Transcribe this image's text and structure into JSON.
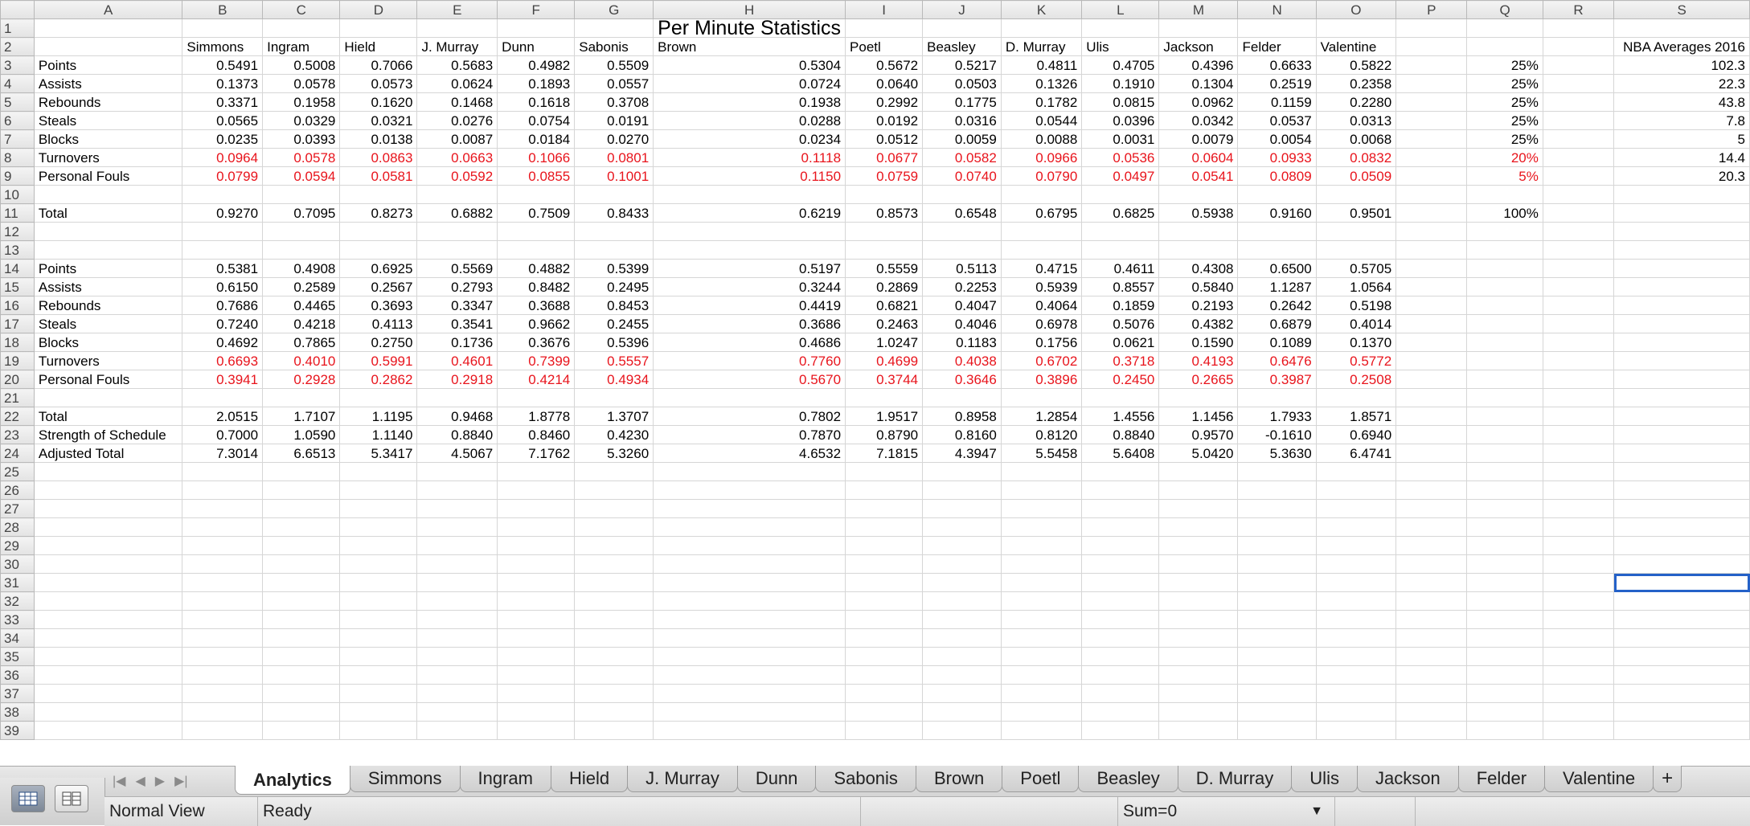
{
  "columns": [
    "A",
    "B",
    "C",
    "D",
    "E",
    "F",
    "G",
    "H",
    "I",
    "J",
    "K",
    "L",
    "M",
    "N",
    "O",
    "P",
    "Q",
    "R",
    "S"
  ],
  "title": "Per Minute Statistics",
  "players": [
    "Simmons",
    "Ingram",
    "Hield",
    "J. Murray",
    "Dunn",
    "Sabonis",
    "Brown",
    "Poetl",
    "Beasley",
    "D. Murray",
    "Ulis",
    "Jackson",
    "Felder",
    "Valentine"
  ],
  "nba_header": "NBA Averages 2016",
  "section1": [
    {
      "label": "Points",
      "red": false,
      "values": [
        "0.5491",
        "0.5008",
        "0.7066",
        "0.5683",
        "0.4982",
        "0.5509",
        "0.5304",
        "0.5672",
        "0.5217",
        "0.4811",
        "0.4705",
        "0.4396",
        "0.6633",
        "0.5822"
      ],
      "weight": "25%",
      "nba": "102.3"
    },
    {
      "label": "Assists",
      "red": false,
      "values": [
        "0.1373",
        "0.0578",
        "0.0573",
        "0.0624",
        "0.1893",
        "0.0557",
        "0.0724",
        "0.0640",
        "0.0503",
        "0.1326",
        "0.1910",
        "0.1304",
        "0.2519",
        "0.2358"
      ],
      "weight": "25%",
      "nba": "22.3"
    },
    {
      "label": "Rebounds",
      "red": false,
      "values": [
        "0.3371",
        "0.1958",
        "0.1620",
        "0.1468",
        "0.1618",
        "0.3708",
        "0.1938",
        "0.2992",
        "0.1775",
        "0.1782",
        "0.0815",
        "0.0962",
        "0.1159",
        "0.2280"
      ],
      "weight": "25%",
      "nba": "43.8"
    },
    {
      "label": "Steals",
      "red": false,
      "values": [
        "0.0565",
        "0.0329",
        "0.0321",
        "0.0276",
        "0.0754",
        "0.0191",
        "0.0288",
        "0.0192",
        "0.0316",
        "0.0544",
        "0.0396",
        "0.0342",
        "0.0537",
        "0.0313"
      ],
      "weight": "25%",
      "nba": "7.8"
    },
    {
      "label": "Blocks",
      "red": false,
      "values": [
        "0.0235",
        "0.0393",
        "0.0138",
        "0.0087",
        "0.0184",
        "0.0270",
        "0.0234",
        "0.0512",
        "0.0059",
        "0.0088",
        "0.0031",
        "0.0079",
        "0.0054",
        "0.0068"
      ],
      "weight": "25%",
      "nba": "5"
    },
    {
      "label": "Turnovers",
      "red": true,
      "values": [
        "0.0964",
        "0.0578",
        "0.0863",
        "0.0663",
        "0.1066",
        "0.0801",
        "0.1118",
        "0.0677",
        "0.0582",
        "0.0966",
        "0.0536",
        "0.0604",
        "0.0933",
        "0.0832"
      ],
      "weight": "20%",
      "nba": "14.4"
    },
    {
      "label": "Personal Fouls",
      "red": true,
      "values": [
        "0.0799",
        "0.0594",
        "0.0581",
        "0.0592",
        "0.0855",
        "0.1001",
        "0.1150",
        "0.0759",
        "0.0740",
        "0.0790",
        "0.0497",
        "0.0541",
        "0.0809",
        "0.0509"
      ],
      "weight": "5%",
      "nba": "20.3"
    }
  ],
  "total1": {
    "label": "Total",
    "values": [
      "0.9270",
      "0.7095",
      "0.8273",
      "0.6882",
      "0.7509",
      "0.8433",
      "0.6219",
      "0.8573",
      "0.6548",
      "0.6795",
      "0.6825",
      "0.5938",
      "0.9160",
      "0.9501"
    ],
    "weight": "100%"
  },
  "section2": [
    {
      "label": "Points",
      "red": false,
      "values": [
        "0.5381",
        "0.4908",
        "0.6925",
        "0.5569",
        "0.4882",
        "0.5399",
        "0.5197",
        "0.5559",
        "0.5113",
        "0.4715",
        "0.4611",
        "0.4308",
        "0.6500",
        "0.5705"
      ]
    },
    {
      "label": "Assists",
      "red": false,
      "values": [
        "0.6150",
        "0.2589",
        "0.2567",
        "0.2793",
        "0.8482",
        "0.2495",
        "0.3244",
        "0.2869",
        "0.2253",
        "0.5939",
        "0.8557",
        "0.5840",
        "1.1287",
        "1.0564"
      ]
    },
    {
      "label": "Rebounds",
      "red": false,
      "values": [
        "0.7686",
        "0.4465",
        "0.3693",
        "0.3347",
        "0.3688",
        "0.8453",
        "0.4419",
        "0.6821",
        "0.4047",
        "0.4064",
        "0.1859",
        "0.2193",
        "0.2642",
        "0.5198"
      ]
    },
    {
      "label": "Steals",
      "red": false,
      "values": [
        "0.7240",
        "0.4218",
        "0.4113",
        "0.3541",
        "0.9662",
        "0.2455",
        "0.3686",
        "0.2463",
        "0.4046",
        "0.6978",
        "0.5076",
        "0.4382",
        "0.6879",
        "0.4014"
      ]
    },
    {
      "label": "Blocks",
      "red": false,
      "values": [
        "0.4692",
        "0.7865",
        "0.2750",
        "0.1736",
        "0.3676",
        "0.5396",
        "0.4686",
        "1.0247",
        "0.1183",
        "0.1756",
        "0.0621",
        "0.1590",
        "0.1089",
        "0.1370"
      ]
    },
    {
      "label": "Turnovers",
      "red": true,
      "values": [
        "0.6693",
        "0.4010",
        "0.5991",
        "0.4601",
        "0.7399",
        "0.5557",
        "0.7760",
        "0.4699",
        "0.4038",
        "0.6702",
        "0.3718",
        "0.4193",
        "0.6476",
        "0.5772"
      ]
    },
    {
      "label": "Personal Fouls",
      "red": true,
      "values": [
        "0.3941",
        "0.2928",
        "0.2862",
        "0.2918",
        "0.4214",
        "0.4934",
        "0.5670",
        "0.3744",
        "0.3646",
        "0.3896",
        "0.2450",
        "0.2665",
        "0.3987",
        "0.2508"
      ]
    }
  ],
  "summary": [
    {
      "label": "Total",
      "values": [
        "2.0515",
        "1.7107",
        "1.1195",
        "0.9468",
        "1.8778",
        "1.3707",
        "0.7802",
        "1.9517",
        "0.8958",
        "1.2854",
        "1.4556",
        "1.1456",
        "1.7933",
        "1.8571"
      ]
    },
    {
      "label": "Strength of Schedule",
      "values": [
        "0.7000",
        "1.0590",
        "1.1140",
        "0.8840",
        "0.8460",
        "0.4230",
        "0.7870",
        "0.8790",
        "0.8160",
        "0.8120",
        "0.8840",
        "0.9570",
        "-0.1610",
        "0.6940"
      ]
    },
    {
      "label": "Adjusted Total",
      "values": [
        "7.3014",
        "6.6513",
        "5.3417",
        "4.5067",
        "7.1762",
        "5.3260",
        "4.6532",
        "7.1815",
        "4.3947",
        "5.5458",
        "5.6408",
        "5.0420",
        "5.3630",
        "6.4741"
      ]
    }
  ],
  "tabs": [
    "Analytics",
    "Simmons",
    "Ingram",
    "Hield",
    "J. Murray",
    "Dunn",
    "Sabonis",
    "Brown",
    "Poetl",
    "Beasley",
    "D. Murray",
    "Ulis",
    "Jackson",
    "Felder",
    "Valentine",
    "+"
  ],
  "active_tab": "Analytics",
  "status": {
    "view": "Normal View",
    "ready": "Ready",
    "sum": "Sum=0"
  },
  "colors": {
    "negative_red": "#e8141c",
    "selection": "#2461c8"
  },
  "selected_cell": "S31"
}
